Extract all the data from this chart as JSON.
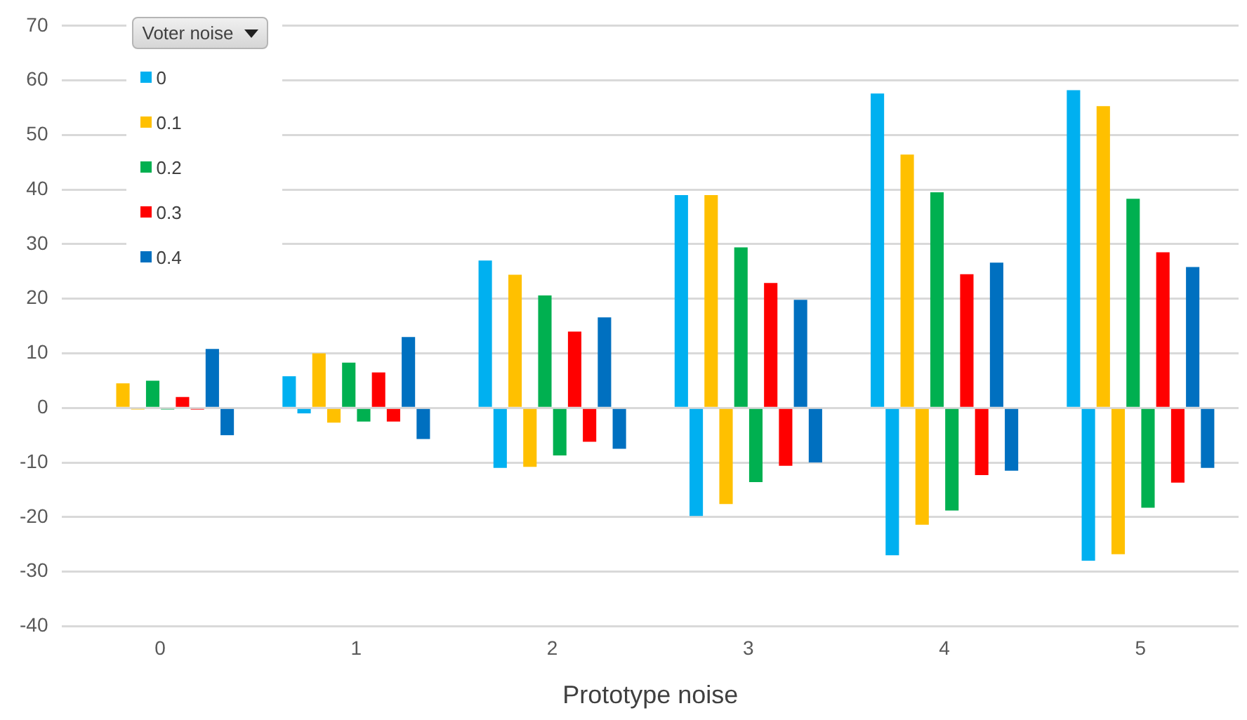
{
  "chart_data": {
    "type": "bar",
    "xlabel": "Prototype noise",
    "legend_title": "Voter noise",
    "categories": [
      "0",
      "1",
      "2",
      "3",
      "4",
      "5"
    ],
    "series": [
      {
        "name": "0",
        "color": "#00b0f0",
        "values": [
          0,
          5.8,
          27,
          39,
          57.6,
          58.2
        ]
      },
      {
        "color": "#00b0f0",
        "values": [
          0,
          -1,
          -11,
          -19.8,
          -27,
          -28
        ]
      },
      {
        "name": "0.1",
        "color": "#ffc000",
        "values": [
          4.5,
          10,
          24.4,
          39,
          46.4,
          55.3
        ]
      },
      {
        "color": "#ffc000",
        "values": [
          -0.3,
          -2.7,
          -10.8,
          -17.6,
          -21.4,
          -26.8
        ]
      },
      {
        "name": "0.2",
        "color": "#00b050",
        "values": [
          5,
          8.3,
          20.6,
          29.4,
          39.5,
          38.3
        ]
      },
      {
        "color": "#00b050",
        "values": [
          -0.3,
          -2.5,
          -8.7,
          -13.6,
          -18.8,
          -18.3
        ]
      },
      {
        "name": "0.3",
        "color": "#ff0000",
        "values": [
          2,
          6.5,
          14,
          22.9,
          24.5,
          28.5
        ]
      },
      {
        "color": "#ff0000",
        "values": [
          -0.3,
          -2.5,
          -6.2,
          -10.6,
          -12.3,
          -13.7
        ]
      },
      {
        "name": "0.4",
        "color": "#0070c0",
        "values": [
          10.8,
          13,
          16.6,
          19.8,
          26.6,
          25.8
        ]
      },
      {
        "color": "#0070c0",
        "values": [
          -5,
          -5.7,
          -7.5,
          -10,
          -11.5,
          -11
        ]
      }
    ],
    "ylim": [
      -40,
      70
    ],
    "yticks": [
      -40,
      -30,
      -20,
      -10,
      0,
      10,
      20,
      30,
      40,
      50,
      60,
      70
    ],
    "grid": "y",
    "legend": "top left"
  }
}
